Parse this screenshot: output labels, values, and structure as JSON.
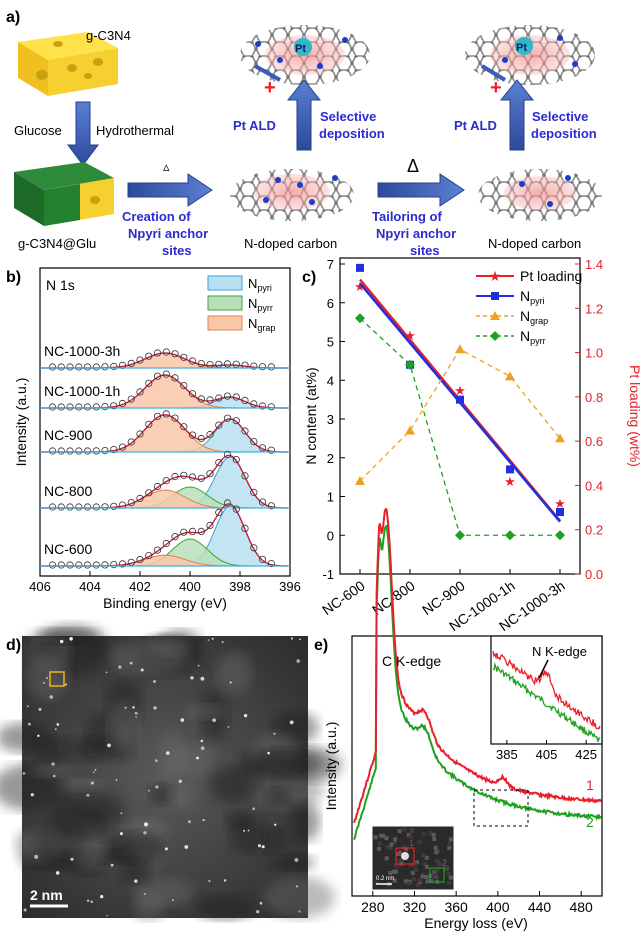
{
  "panel_a": {
    "label": "a)",
    "gc3n4": "g-C3N4",
    "glucose": "Glucose",
    "hydrothermal": "Hydrothermal",
    "gc3n4_glu": "g-C3N4@Glu",
    "step1_symbol": "▵",
    "step1_line1": "Creation of",
    "step1_line2": "Npyri anchor",
    "step1_line3": "sites",
    "step2_symbol": "Δ",
    "step2_line1": "Tailoring of",
    "step2_line2": "Npyri anchor",
    "step2_line3": "sites",
    "ndoped1": "N-doped carbon",
    "ndoped2": "N-doped carbon",
    "pt": "Pt",
    "pt_ald": "Pt ALD",
    "selective": "Selective",
    "deposition": "deposition"
  },
  "chart_data": [
    {
      "type": "line",
      "panel": "b)",
      "title": "N 1s",
      "xlabel": "Binding energy (eV)",
      "ylabel": "Intensity (a.u.)",
      "xlim": [
        406,
        396
      ],
      "xticks": [
        "406",
        "404",
        "402",
        "400",
        "398",
        "396"
      ],
      "legend": [
        "Npyri",
        "Npyrr",
        "Ngrap"
      ],
      "samples": [
        "NC-1000-3h",
        "NC-1000-1h",
        "NC-900",
        "NC-800",
        "NC-600"
      ],
      "series": [
        {
          "name": "NC-1000-3h",
          "Npyri": 0.05,
          "Npyrr": 0.0,
          "Ngrap": 0.25
        },
        {
          "name": "NC-1000-1h",
          "Npyri": 0.18,
          "Npyrr": 0.0,
          "Ngrap": 0.55
        },
        {
          "name": "NC-900",
          "Npyri": 0.55,
          "Npyrr": 0.0,
          "Ngrap": 0.62
        },
        {
          "name": "NC-800",
          "Npyri": 0.85,
          "Npyrr": 0.35,
          "Ngrap": 0.3
        },
        {
          "name": "NC-600",
          "Npyri": 1.0,
          "Npyrr": 0.45,
          "Ngrap": 0.18
        }
      ]
    },
    {
      "type": "line",
      "panel": "c)",
      "categories": [
        "NC-600",
        "NC-800",
        "NC-900",
        "NC-1000-1h",
        "NC-1000-3h"
      ],
      "ylabel": "N content (at%)",
      "y2label": "Pt loading (wt%)",
      "ylim": [
        -1,
        7
      ],
      "y2lim": [
        0,
        1.4
      ],
      "yticks": [
        "-1",
        "0",
        "1",
        "2",
        "3",
        "4",
        "5",
        "6",
        "7"
      ],
      "y2ticks": [
        "0.0",
        "0.2",
        "0.4",
        "0.6",
        "0.8",
        "1.0",
        "1.2",
        "1.4"
      ],
      "series": [
        {
          "name": "Pt loading",
          "axis": "right",
          "color": "#e8202a",
          "values": [
            1.3,
            1.08,
            0.83,
            0.42,
            0.32
          ],
          "fit": [
            1.33,
            0.24
          ]
        },
        {
          "name": "Npyri",
          "axis": "left",
          "color": "#2030e0",
          "values": [
            6.9,
            4.4,
            3.5,
            1.7,
            0.6
          ],
          "fit": [
            6.5,
            0.35
          ]
        },
        {
          "name": "Ngrap",
          "axis": "left",
          "color": "#f0a020",
          "values": [
            1.4,
            2.7,
            4.8,
            4.1,
            2.5
          ]
        },
        {
          "name": "Npyrr",
          "axis": "left",
          "color": "#20a020",
          "values": [
            5.6,
            4.4,
            0.0,
            0.0,
            0.0
          ]
        }
      ]
    },
    {
      "type": "line",
      "panel": "e)",
      "xlabel": "Energy loss (eV)",
      "ylabel": "Intensity (a.u.)",
      "xlim": [
        260,
        500
      ],
      "xticks": [
        "280",
        "320",
        "360",
        "400",
        "440",
        "480"
      ],
      "annotation": "C K-edge",
      "inset_annotation": "N K-edge",
      "inset_xticks": [
        "385",
        "405",
        "425"
      ],
      "curve_labels": [
        "1",
        "2"
      ],
      "inset_scale": "0.2 nm"
    }
  ],
  "panel_d": {
    "label": "d)",
    "scale_bar": "2 nm"
  },
  "legend_b": {
    "t1": "N",
    "t2": "pyri",
    "t3": "N",
    "t4": "pyrr",
    "t5": "N",
    "t6": "grap"
  },
  "legend_c": {
    "pt": "Pt loading",
    "n": "N",
    "pyri": "pyri",
    "grap": "grap",
    "pyrr": "pyrr"
  },
  "colors": {
    "pt": "#e8202a",
    "pyri": "#2030e0",
    "grap": "#f0a020",
    "pyrr": "#20a020",
    "arrow": "#3b5bb5",
    "purple": "#2b2bd0"
  }
}
